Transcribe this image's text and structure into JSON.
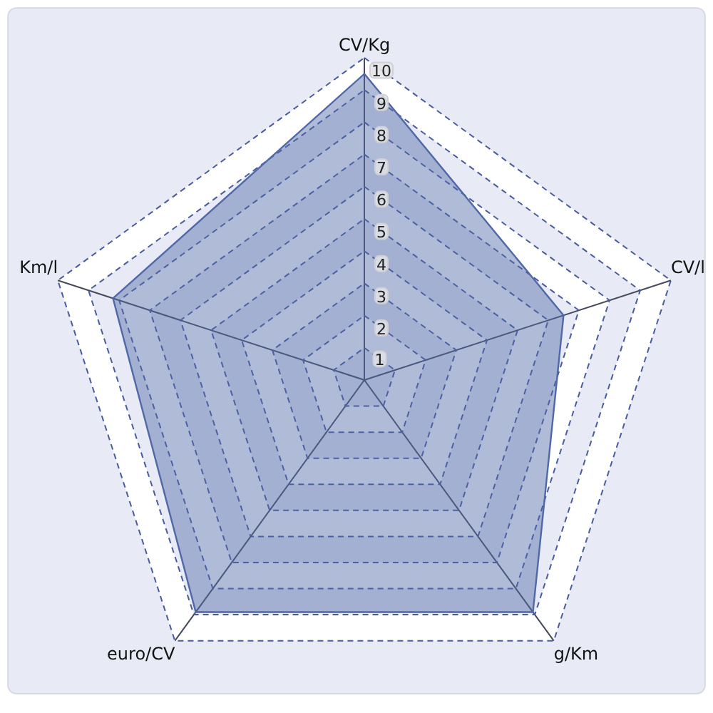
{
  "chart_data": {
    "type": "radar",
    "categories": [
      "CV/Kg",
      "CV/l",
      "g/Km",
      "euro/CV",
      "Km/l"
    ],
    "series": [
      {
        "color": "#5068a8",
        "values": [
          9.5,
          6.5,
          8.9,
          8.9,
          8.2
        ]
      }
    ],
    "ylim": [
      0,
      10
    ],
    "yticks": [
      1,
      2,
      3,
      4,
      5,
      6,
      7,
      8,
      9,
      10
    ],
    "grid": true
  }
}
